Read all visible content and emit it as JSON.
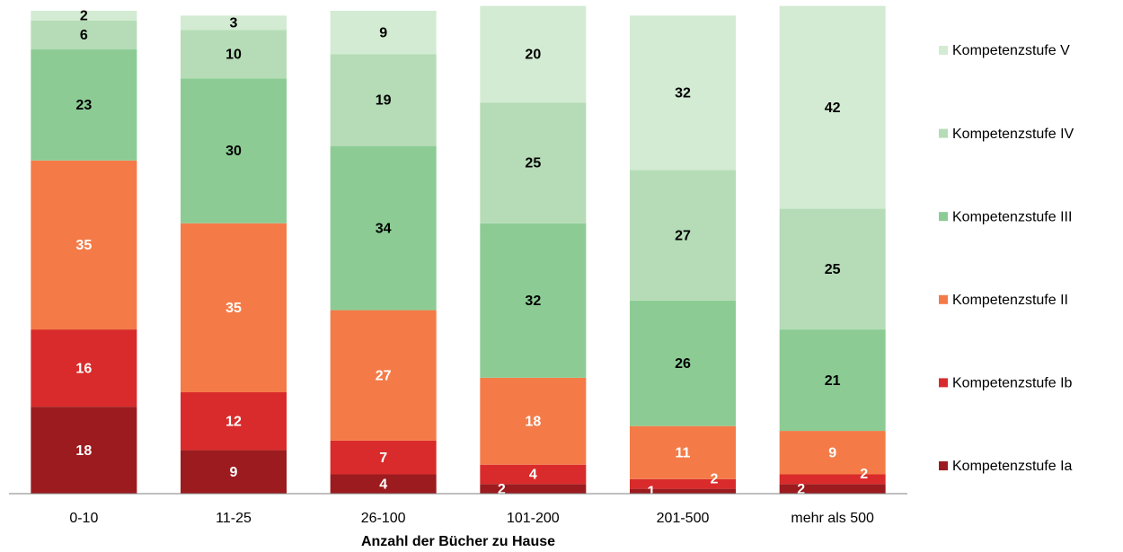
{
  "chart_data": {
    "type": "stacked_bar",
    "x_label": "Anzahl der Bücher zu Hause",
    "categories": [
      "0-10",
      "11-25",
      "26-100",
      "101-200",
      "201-500",
      "mehr als 500"
    ],
    "series": [
      {
        "name": "Kompetenzstufe Ia",
        "color": "#9b1b1f",
        "label_color": "#ffffff",
        "values": [
          18,
          9,
          4,
          2,
          1,
          2
        ]
      },
      {
        "name": "Kompetenzstufe Ib",
        "color": "#d92b2b",
        "label_color": "#ffffff",
        "values": [
          16,
          12,
          7,
          4,
          2,
          2
        ]
      },
      {
        "name": "Kompetenzstufe II",
        "color": "#f47b48",
        "label_color": "#ffffff",
        "values": [
          35,
          35,
          27,
          18,
          11,
          9
        ]
      },
      {
        "name": "Kompetenzstufe III",
        "color": "#8ccc94",
        "label_color": "#000000",
        "values": [
          23,
          30,
          34,
          32,
          26,
          21
        ]
      },
      {
        "name": "Kompetenzstufe IV",
        "color": "#b5dcb6",
        "label_color": "#000000",
        "values": [
          6,
          10,
          19,
          25,
          27,
          25
        ]
      },
      {
        "name": "Kompetenzstufe V",
        "color": "#d3ebd3",
        "label_color": "#000000",
        "values": [
          2,
          3,
          9,
          20,
          32,
          42
        ]
      }
    ],
    "ylim": [
      0,
      100
    ],
    "legend": "right"
  }
}
